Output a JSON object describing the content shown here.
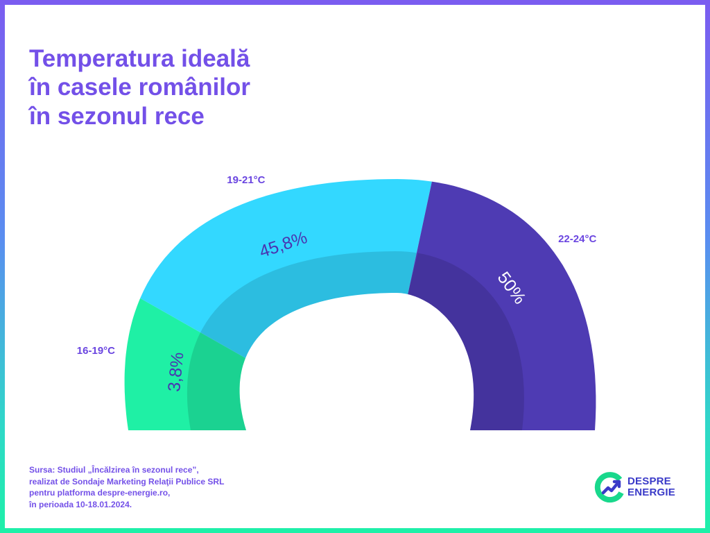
{
  "title": {
    "line1": "Temperatura ideală",
    "line2": "în casele românilor",
    "line3": "în sezonul rece"
  },
  "chart_data": {
    "type": "pie",
    "title": "Temperatura ideală în casele românilor în sezonul rece",
    "categories": [
      "16-19°C",
      "19-21°C",
      "22-24°C"
    ],
    "values": [
      3.8,
      45.8,
      50
    ],
    "value_labels": [
      "3,8%",
      "45,8%",
      "50%"
    ],
    "unit": "%",
    "colors": [
      "#1ff0a5",
      "#33d8ff",
      "#4e3bb3"
    ],
    "label_color": "#6a45e0",
    "value_label_colors": [
      "#4a35b0",
      "#4a35b0",
      "#ffffff"
    ]
  },
  "source": {
    "line1": "Sursa: Studiul „Încălzirea în sezonul rece”,",
    "line2": "realizat de Sondaje Marketing Relaţii Publice SRL",
    "line3": "pentru platforma despre-energie.ro,",
    "line4": "în perioada 10-18.01.2024."
  },
  "logo": {
    "line1": "DESPRE",
    "line2": "ENERGIE",
    "icon": "despre-energie-logo-icon",
    "colors": [
      "#19d88c",
      "#3a3ac8"
    ]
  },
  "colors": {
    "accent": "#7350e8",
    "background": "#ffffff"
  }
}
